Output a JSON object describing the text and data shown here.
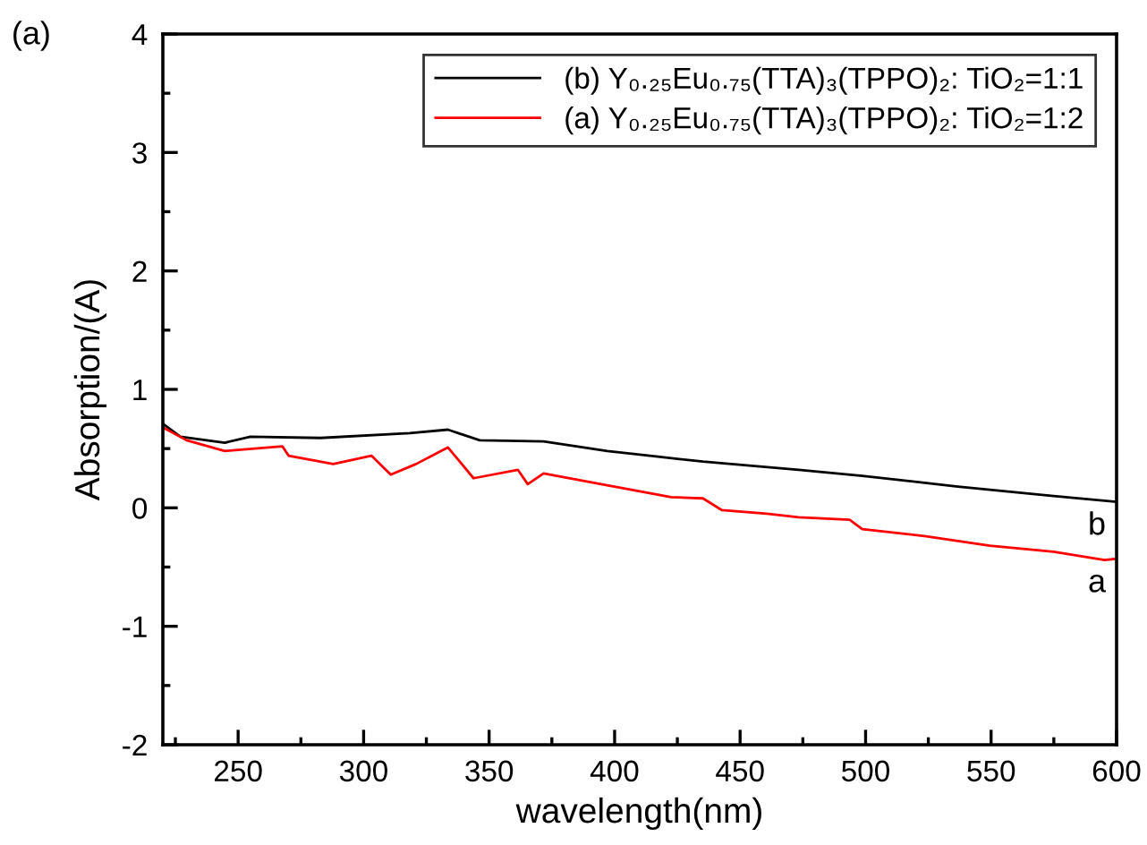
{
  "chart_data": {
    "type": "line",
    "xlabel": "wavelength(nm)",
    "ylabel": "Absorption/(A)",
    "xlim": [
      220,
      600
    ],
    "ylim": [
      -2,
      4
    ],
    "xticks": [
      {
        "value": 225,
        "label": null
      },
      250,
      {
        "value": 275,
        "label": null
      },
      300,
      {
        "value": 325,
        "label": null
      },
      350,
      {
        "value": 375,
        "label": null
      },
      400,
      {
        "value": 425,
        "label": null
      },
      450,
      {
        "value": 475,
        "label": null
      },
      500,
      {
        "value": 525,
        "label": null
      },
      550,
      {
        "value": 575,
        "label": null
      },
      600
    ],
    "yticks": [
      -2,
      {
        "value": -1.5,
        "label": null
      },
      -1,
      {
        "value": -0.5,
        "label": null
      },
      0,
      {
        "value": 0.5,
        "label": null
      },
      1,
      {
        "value": 1.5,
        "label": null
      },
      2,
      {
        "value": 2.5,
        "label": null
      },
      3,
      {
        "value": 3.5,
        "label": null
      },
      4
    ],
    "grid": false,
    "legend": "top right",
    "line_style": "solid",
    "marker": "none",
    "series": [
      {
        "name": "(b) Y₀.₂₅Eu₀.₇₅(TTA)₃(TPPO)₂: TiO₂=1:1",
        "color": "#000000",
        "x": [
          220,
          227,
          244.7,
          254.9,
          282.8,
          318.4,
          333.6,
          346.3,
          371.7,
          397.1,
          435.2,
          473.3,
          498.7,
          536.8,
          574.9,
          600
        ],
        "values": [
          0.71,
          0.6,
          0.55,
          0.6,
          0.59,
          0.63,
          0.66,
          0.57,
          0.56,
          0.48,
          0.39,
          0.32,
          0.27,
          0.18,
          0.1,
          0.05
        ]
      },
      {
        "name": "(a) Y₀.₂₅Eu₀.₇₅(TTA)₃(TPPO)₂: TiO₂=1:2",
        "color": "#ff0000",
        "x": [
          220,
          229.5,
          244.7,
          267.6,
          270.1,
          287.9,
          303.1,
          310.8,
          320.9,
          333.6,
          343.8,
          361.5,
          365.4,
          371.7,
          394.6,
          422.5,
          435.2,
          442.8,
          460.6,
          473.3,
          493.6,
          498.7,
          524.1,
          549.5,
          574.9,
          595.2,
          600
        ],
        "values": [
          0.68,
          0.57,
          0.48,
          0.52,
          0.44,
          0.37,
          0.44,
          0.28,
          0.37,
          0.51,
          0.25,
          0.32,
          0.2,
          0.29,
          0.2,
          0.09,
          0.08,
          -0.02,
          -0.05,
          -0.08,
          -0.1,
          -0.18,
          -0.24,
          -0.32,
          -0.37,
          -0.44,
          -0.43
        ]
      }
    ],
    "annotations": [
      "(a)",
      "b",
      "a"
    ]
  }
}
